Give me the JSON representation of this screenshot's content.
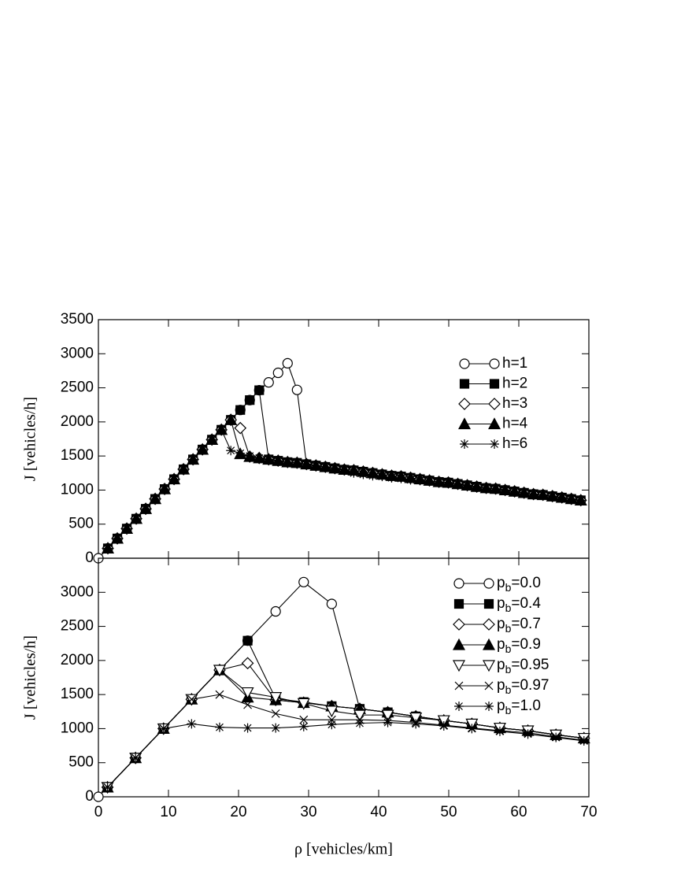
{
  "chart_data": [
    {
      "type": "line",
      "ylabel": "J [vehicles/h]",
      "ylim": [
        0,
        3500
      ],
      "yticks": [
        0,
        500,
        1000,
        1500,
        2000,
        2500,
        3000,
        3500
      ],
      "xlim": [
        0,
        70
      ],
      "legend": "upper right",
      "x": [
        0,
        1.35,
        2.7,
        4.05,
        5.4,
        6.75,
        8.1,
        9.45,
        10.8,
        12.15,
        13.5,
        14.85,
        16.2,
        17.55,
        18.9,
        20.25,
        21.6,
        22.95,
        24.3,
        25.65,
        27,
        28.35,
        29.7,
        31.05,
        32.4,
        33.75,
        35.1,
        36.45,
        37.8,
        39.15,
        40.5,
        41.85,
        43.2,
        44.55,
        45.9,
        47.25,
        48.6,
        49.95,
        51.3,
        52.65,
        54,
        55.35,
        56.7,
        58.05,
        59.4,
        60.75,
        62.1,
        63.45,
        64.8,
        66.15,
        67.5,
        68.85
      ],
      "series": [
        {
          "name": "h=1",
          "color": "#000000",
          "marker": "circle",
          "values": [
            0,
            145,
            290,
            435,
            580,
            725,
            870,
            1015,
            1160,
            1305,
            1450,
            1595,
            1740,
            1885,
            2030,
            2175,
            2320,
            2465,
            2580,
            2720,
            2860,
            2470,
            1380,
            1360,
            1340,
            1320,
            1300,
            1290,
            1270,
            1250,
            1230,
            1210,
            1200,
            1180,
            1160,
            1140,
            1120,
            1110,
            1090,
            1070,
            1050,
            1030,
            1020,
            1000,
            980,
            960,
            940,
            930,
            910,
            890,
            870,
            850
          ]
        },
        {
          "name": "h=2",
          "color": "#000000",
          "marker": "square",
          "values": [
            null,
            145,
            290,
            435,
            580,
            725,
            870,
            1015,
            1160,
            1305,
            1450,
            1595,
            1740,
            1885,
            2030,
            2175,
            2320,
            2465,
            1450,
            1430,
            1410,
            1400,
            1380,
            1360,
            1340,
            1320,
            1300,
            1290,
            1270,
            1250,
            1230,
            1210,
            1200,
            1180,
            1160,
            1140,
            1120,
            1110,
            1090,
            1070,
            1050,
            1030,
            1020,
            1000,
            980,
            960,
            940,
            930,
            910,
            890,
            870,
            850
          ]
        },
        {
          "name": "h=3",
          "color": "#000000",
          "marker": "diamond",
          "values": [
            null,
            145,
            290,
            435,
            580,
            725,
            870,
            1015,
            1160,
            1305,
            1450,
            1595,
            1740,
            1885,
            2030,
            1910,
            1490,
            1470,
            1450,
            1430,
            1410,
            1400,
            1380,
            1360,
            1340,
            1320,
            1300,
            1290,
            1270,
            1250,
            1230,
            1210,
            1200,
            1180,
            1160,
            1140,
            1120,
            1110,
            1090,
            1070,
            1050,
            1030,
            1020,
            1000,
            980,
            960,
            940,
            930,
            910,
            890,
            870,
            850
          ]
        },
        {
          "name": "h=4",
          "color": "#000000",
          "marker": "triangle",
          "values": [
            null,
            145,
            290,
            435,
            580,
            725,
            870,
            1015,
            1160,
            1305,
            1450,
            1595,
            1740,
            1885,
            2030,
            1530,
            1490,
            1470,
            1450,
            1430,
            1410,
            1400,
            1380,
            1360,
            1340,
            1320,
            1300,
            1290,
            1270,
            1250,
            1230,
            1210,
            1200,
            1180,
            1160,
            1140,
            1120,
            1110,
            1090,
            1070,
            1050,
            1030,
            1020,
            1000,
            980,
            960,
            940,
            930,
            910,
            890,
            870,
            850
          ]
        },
        {
          "name": "h=6",
          "color": "#000000",
          "marker": "star",
          "values": [
            null,
            145,
            290,
            435,
            580,
            725,
            870,
            1015,
            1160,
            1305,
            1450,
            1595,
            1740,
            1885,
            1580,
            1540,
            1500,
            1470,
            1450,
            1430,
            1410,
            1400,
            1380,
            1360,
            1340,
            1320,
            1300,
            1250,
            1230,
            1210,
            1200,
            1180,
            1170,
            1150,
            1140,
            1130,
            1120,
            1110,
            1090,
            1070,
            1050,
            1030,
            1020,
            1000,
            980,
            960,
            940,
            930,
            910,
            890,
            870,
            850
          ]
        }
      ]
    },
    {
      "type": "line",
      "ylabel": "J [vehicles/h]",
      "xlabel": "ρ [vehicles/km]",
      "ylim": [
        0,
        3500
      ],
      "yticks": [
        0,
        500,
        1000,
        1500,
        2000,
        2500,
        3000
      ],
      "xlim": [
        0,
        70
      ],
      "xticks": [
        0,
        10,
        20,
        30,
        40,
        50,
        60,
        70
      ],
      "legend": "upper right",
      "x": [
        0,
        1.3,
        5.3,
        9.3,
        13.3,
        17.3,
        21.3,
        25.3,
        29.3,
        33.3,
        37.3,
        41.3,
        45.3,
        49.3,
        53.3,
        57.3,
        61.3,
        65.3,
        69.3
      ],
      "series": [
        {
          "name": "p_b=0.0",
          "color": "#000000",
          "marker": "circle",
          "values": [
            0,
            140,
            570,
            1000,
            1430,
            1860,
            2290,
            2720,
            3150,
            2830,
            1290,
            1240,
            1180,
            1120,
            1070,
            1010,
            970,
            910,
            860
          ]
        },
        {
          "name": "p_b=0.4",
          "color": "#000000",
          "marker": "square",
          "values": [
            null,
            140,
            570,
            1000,
            1430,
            1860,
            2290,
            1440,
            1390,
            1330,
            1290,
            1240,
            1180,
            1120,
            1070,
            1010,
            970,
            910,
            860
          ]
        },
        {
          "name": "p_b=0.7",
          "color": "#000000",
          "marker": "diamond",
          "values": [
            null,
            140,
            570,
            1000,
            1430,
            1860,
            1960,
            1420,
            1380,
            1330,
            1290,
            1240,
            1180,
            1120,
            1070,
            1010,
            970,
            910,
            860
          ]
        },
        {
          "name": "p_b=0.9",
          "color": "#000000",
          "marker": "triangle",
          "values": [
            null,
            140,
            570,
            1000,
            1430,
            1860,
            1460,
            1420,
            1380,
            1330,
            1290,
            1240,
            1180,
            1120,
            1070,
            1010,
            970,
            910,
            860
          ]
        },
        {
          "name": "p_b=0.95",
          "color": "#000000",
          "marker": "triangle-down",
          "values": [
            null,
            140,
            570,
            1000,
            1430,
            1860,
            1530,
            1460,
            1370,
            1260,
            1200,
            1200,
            1160,
            1120,
            1070,
            1010,
            970,
            910,
            860
          ]
        },
        {
          "name": "p_b=0.97",
          "color": "#000000",
          "marker": "x",
          "values": [
            null,
            140,
            570,
            1000,
            1430,
            1500,
            1350,
            1220,
            1130,
            1130,
            1130,
            1120,
            1090,
            1050,
            1010,
            970,
            940,
            880,
            830
          ]
        },
        {
          "name": "p_b=1.0",
          "color": "#000000",
          "marker": "star",
          "values": [
            null,
            140,
            570,
            1000,
            1070,
            1020,
            1010,
            1010,
            1030,
            1060,
            1080,
            1090,
            1070,
            1040,
            1000,
            960,
            920,
            870,
            820
          ]
        }
      ]
    }
  ]
}
